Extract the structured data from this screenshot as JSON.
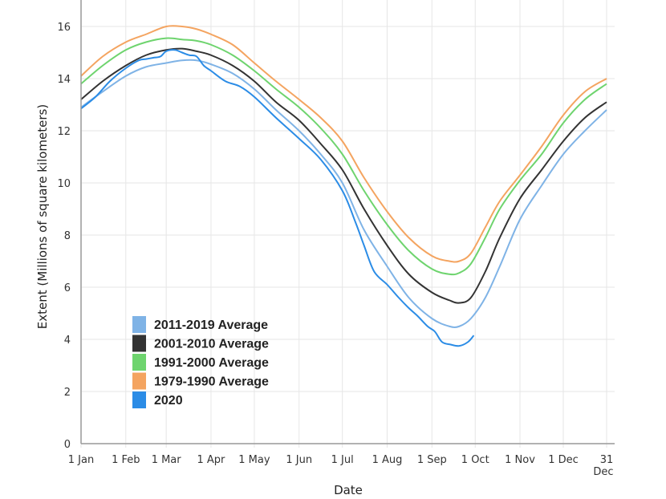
{
  "chart_data": {
    "type": "line",
    "title": "",
    "xlabel": "Date",
    "ylabel": "Extent (Millions of square kilometers)",
    "ylim": [
      0,
      17
    ],
    "yticks": [
      0,
      2,
      4,
      6,
      8,
      10,
      12,
      14,
      16
    ],
    "xlim_days": [
      0,
      365
    ],
    "xticks": [
      {
        "day": 0,
        "label": "1 Jan"
      },
      {
        "day": 31,
        "label": "1 Feb"
      },
      {
        "day": 59,
        "label": "1 Mar"
      },
      {
        "day": 90,
        "label": "1 Apr"
      },
      {
        "day": 120,
        "label": "1 May"
      },
      {
        "day": 151,
        "label": "1 Jun"
      },
      {
        "day": 181,
        "label": "1 Jul"
      },
      {
        "day": 212,
        "label": "1 Aug"
      },
      {
        "day": 243,
        "label": "1 Sep"
      },
      {
        "day": 273,
        "label": "1 Oct"
      },
      {
        "day": 304,
        "label": "1 Nov"
      },
      {
        "day": 334,
        "label": "1 Dec"
      },
      {
        "day": 364,
        "label": "31",
        "label2": "Dec"
      }
    ],
    "grid": true,
    "legend_position": "bottom-left",
    "series": [
      {
        "name": "1979-1990 Average",
        "color": "#f4a460",
        "x": [
          0,
          15,
          31,
          45,
          59,
          70,
          80,
          90,
          105,
          120,
          135,
          151,
          166,
          181,
          196,
          212,
          227,
          243,
          255,
          262,
          270,
          280,
          290,
          304,
          319,
          334,
          349,
          364
        ],
        "y": [
          14.1,
          14.85,
          15.4,
          15.7,
          16.0,
          16.0,
          15.9,
          15.7,
          15.3,
          14.6,
          13.9,
          13.2,
          12.5,
          11.6,
          10.2,
          8.9,
          7.9,
          7.2,
          7.0,
          7.0,
          7.3,
          8.3,
          9.3,
          10.3,
          11.4,
          12.6,
          13.5,
          14.0
        ]
      },
      {
        "name": "1991-2000 Average",
        "color": "#6ed46e",
        "x": [
          0,
          15,
          31,
          45,
          59,
          70,
          80,
          90,
          105,
          120,
          135,
          151,
          166,
          181,
          196,
          212,
          227,
          243,
          255,
          262,
          270,
          280,
          290,
          304,
          319,
          334,
          349,
          364
        ],
        "y": [
          13.8,
          14.5,
          15.1,
          15.4,
          15.55,
          15.5,
          15.45,
          15.3,
          14.9,
          14.3,
          13.6,
          12.9,
          12.1,
          11.1,
          9.7,
          8.4,
          7.4,
          6.7,
          6.5,
          6.55,
          6.9,
          7.9,
          9.0,
          10.1,
          11.1,
          12.3,
          13.2,
          13.8
        ]
      },
      {
        "name": "2001-2010 Average",
        "color": "#333333",
        "x": [
          0,
          15,
          31,
          45,
          59,
          70,
          80,
          90,
          105,
          120,
          135,
          151,
          166,
          181,
          196,
          212,
          227,
          243,
          255,
          262,
          270,
          280,
          290,
          304,
          319,
          334,
          349,
          364
        ],
        "y": [
          13.2,
          13.9,
          14.5,
          14.9,
          15.1,
          15.15,
          15.05,
          14.9,
          14.5,
          13.9,
          13.1,
          12.4,
          11.5,
          10.5,
          9.0,
          7.6,
          6.5,
          5.8,
          5.5,
          5.4,
          5.6,
          6.6,
          7.9,
          9.4,
          10.5,
          11.6,
          12.5,
          13.1
        ]
      },
      {
        "name": "2011-2019 Average",
        "color": "#7fb3e6",
        "x": [
          0,
          15,
          31,
          45,
          59,
          70,
          80,
          90,
          105,
          120,
          135,
          151,
          166,
          181,
          196,
          212,
          227,
          243,
          255,
          262,
          270,
          280,
          290,
          304,
          319,
          334,
          349,
          364
        ],
        "y": [
          12.9,
          13.5,
          14.1,
          14.45,
          14.6,
          14.7,
          14.7,
          14.55,
          14.2,
          13.6,
          12.8,
          12.0,
          11.1,
          10.0,
          8.2,
          6.8,
          5.6,
          4.8,
          4.5,
          4.5,
          4.8,
          5.6,
          6.8,
          8.6,
          9.9,
          11.1,
          12.0,
          12.8
        ]
      },
      {
        "name": "2020",
        "color": "#2b8ce6",
        "x": [
          0,
          10,
          20,
          31,
          40,
          45,
          50,
          55,
          59,
          65,
          70,
          75,
          80,
          85,
          90,
          100,
          110,
          120,
          135,
          151,
          166,
          181,
          190,
          196,
          203,
          212,
          220,
          227,
          233,
          240,
          245,
          250,
          256,
          262,
          268,
          272
        ],
        "y": [
          12.85,
          13.3,
          13.9,
          14.4,
          14.7,
          14.75,
          14.8,
          14.85,
          15.05,
          15.1,
          15.0,
          14.9,
          14.85,
          14.5,
          14.3,
          13.9,
          13.7,
          13.3,
          12.5,
          11.7,
          10.9,
          9.7,
          8.5,
          7.6,
          6.6,
          6.1,
          5.6,
          5.2,
          4.9,
          4.5,
          4.3,
          3.9,
          3.8,
          3.75,
          3.9,
          4.15
        ]
      }
    ],
    "legend_order": [
      "2011-2019 Average",
      "2001-2010 Average",
      "1991-2000 Average",
      "1979-1990 Average",
      "2020"
    ]
  }
}
